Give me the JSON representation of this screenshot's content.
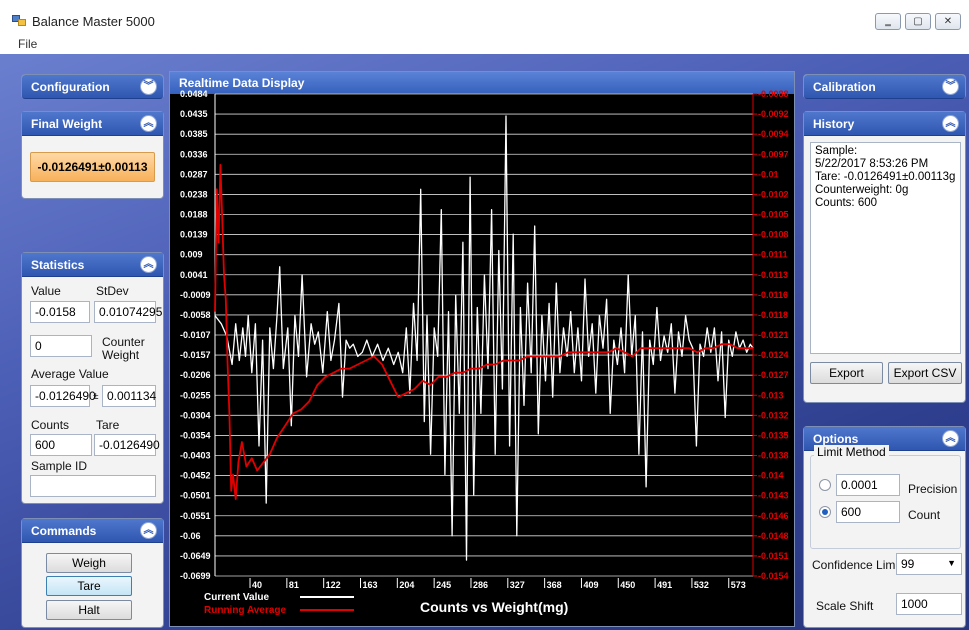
{
  "window": {
    "title": "Balance Master 5000",
    "min": "‗",
    "max": "▢",
    "close": "✕"
  },
  "menu": {
    "file": "File"
  },
  "configuration": {
    "title": "Configuration"
  },
  "final_weight": {
    "title": "Final Weight",
    "value": "-0.0126491±0.00113"
  },
  "statistics": {
    "title": "Statistics",
    "value_label": "Value",
    "stdev_label": "StDev",
    "value": "-0.0158",
    "stdev": "0.01074295",
    "counter_weight_value": "0",
    "counter_weight_label_1": "Counter",
    "counter_weight_label_2": "Weight",
    "average_label": "Average Value",
    "average": "-0.0126490",
    "pm": "±",
    "average_err": "0.001134",
    "counts_label": "Counts",
    "tare_label": "Tare",
    "counts": "600",
    "tare": "-0.0126490",
    "sample_id_label": "Sample ID",
    "sample_id": ""
  },
  "commands": {
    "title": "Commands",
    "weigh": "Weigh",
    "tare": "Tare",
    "halt": "Halt"
  },
  "realtime": {
    "title": "Realtime Data Display"
  },
  "calibration": {
    "title": "Calibration"
  },
  "history": {
    "title": "History",
    "lines": [
      "Sample:",
      "5/22/2017 8:53:26 PM",
      "Tare: -0.0126491±0.00113g",
      "Counterweight: 0g",
      "Counts: 600"
    ],
    "export": "Export",
    "export_csv": "Export CSV"
  },
  "options": {
    "title": "Options",
    "limit_method": "Limit Method",
    "precision_value": "0.0001",
    "precision_label": "Precision",
    "count_value": "600",
    "count_label": "Count",
    "selected": "count",
    "confidence_label": "Confidence Limit",
    "confidence_value": "99",
    "scale_shift_label": "Scale Shift",
    "scale_shift_value": "1000"
  },
  "colors": {
    "current": "#ffffff",
    "running": "#e00000",
    "grid": "#d9d9d9"
  },
  "chart_data": {
    "type": "line",
    "title": "Counts vs Weight(mg)",
    "x_ticks": [
      "40",
      "81",
      "122",
      "163",
      "204",
      "245",
      "286",
      "327",
      "368",
      "409",
      "450",
      "491",
      "532",
      "573"
    ],
    "y_left_ticks": [
      "0.0484",
      "0.0435",
      "0.0385",
      "0.0336",
      "0.0287",
      "0.0238",
      "0.0188",
      "0.0139",
      "0.009",
      "0.0041",
      "-0.0009",
      "-0.0058",
      "-0.0107",
      "-0.0157",
      "-0.0206",
      "-0.0255",
      "-0.0304",
      "-0.0354",
      "-0.0403",
      "-0.0452",
      "-0.0501",
      "-0.0551",
      "-0.06",
      "-0.0649",
      "-0.0699"
    ],
    "y_right_ticks": [
      "-0.0088",
      "-0.0092",
      "-0.0094",
      "-0.0097",
      "-0.01",
      "-0.0102",
      "-0.0105",
      "-0.0108",
      "-0.0111",
      "-0.0113",
      "-0.0116",
      "-0.0118",
      "-0.0121",
      "-0.0124",
      "-0.0127",
      "-0.013",
      "-0.0132",
      "-0.0135",
      "-0.0138",
      "-0.014",
      "-0.0143",
      "-0.0146",
      "-0.0148",
      "-0.0151",
      "-0.0154"
    ],
    "ylim_left": [
      -0.0699,
      0.0484
    ],
    "ylim_right": [
      -0.0154,
      -0.0088
    ],
    "xlim": [
      1,
      600
    ],
    "grid": true,
    "legend_position": "bottom-left",
    "series": [
      {
        "name": "Current Value",
        "axis": "left",
        "points": [
          [
            1,
            -0.006
          ],
          [
            8,
            -0.008
          ],
          [
            14,
            -0.011
          ],
          [
            20,
            -0.018
          ],
          [
            24,
            -0.008
          ],
          [
            28,
            -0.017
          ],
          [
            32,
            -0.009
          ],
          [
            35,
            -0.016
          ],
          [
            38,
            -0.006
          ],
          [
            42,
            -0.02
          ],
          [
            46,
            -0.008
          ],
          [
            50,
            -0.038
          ],
          [
            54,
            -0.012
          ],
          [
            58,
            -0.052
          ],
          [
            62,
            -0.009
          ],
          [
            66,
            -0.019
          ],
          [
            70,
            -0.006
          ],
          [
            73,
            0.006
          ],
          [
            77,
            -0.019
          ],
          [
            82,
            -0.009
          ],
          [
            86,
            -0.033
          ],
          [
            90,
            -0.006
          ],
          [
            94,
            -0.016
          ],
          [
            98,
            0.004
          ],
          [
            103,
            -0.021
          ],
          [
            108,
            -0.008
          ],
          [
            112,
            -0.013
          ],
          [
            116,
            -0.01
          ],
          [
            121,
            -0.02
          ],
          [
            126,
            -0.005
          ],
          [
            130,
            -0.017
          ],
          [
            134,
            -0.012
          ],
          [
            139,
            -0.003
          ],
          [
            143,
            -0.026
          ],
          [
            147,
            -0.012
          ],
          [
            151,
            -0.014
          ],
          [
            155,
            -0.013
          ],
          [
            160,
            -0.016
          ],
          [
            165,
            -0.015
          ],
          [
            170,
            -0.012
          ],
          [
            176,
            -0.016
          ],
          [
            182,
            -0.013
          ],
          [
            188,
            -0.017
          ],
          [
            194,
            -0.014
          ],
          [
            200,
            -0.018
          ],
          [
            205,
            -0.015
          ],
          [
            210,
            -0.02
          ],
          [
            214,
            -0.009
          ],
          [
            218,
            -0.025
          ],
          [
            222,
            -0.003
          ],
          [
            226,
            -0.017
          ],
          [
            230,
            0.025
          ],
          [
            234,
            -0.032
          ],
          [
            237,
            -0.006
          ],
          [
            241,
            -0.04
          ],
          [
            245,
            -0.009
          ],
          [
            249,
            -0.016
          ],
          [
            253,
            0.02
          ],
          [
            257,
            -0.045
          ],
          [
            261,
            -0.005
          ],
          [
            265,
            -0.06
          ],
          [
            269,
            -0.001
          ],
          [
            273,
            -0.03
          ],
          [
            277,
            0.012
          ],
          [
            281,
            -0.066
          ],
          [
            285,
            0.028
          ],
          [
            289,
            -0.05
          ],
          [
            293,
            -0.004
          ],
          [
            297,
            -0.03
          ],
          [
            301,
            0.004
          ],
          [
            305,
            -0.019
          ],
          [
            309,
            0.02
          ],
          [
            313,
            -0.04
          ],
          [
            317,
            0.01
          ],
          [
            321,
            -0.024
          ],
          [
            325,
            0.043
          ],
          [
            329,
            -0.038
          ],
          [
            333,
            0.014
          ],
          [
            337,
            -0.06
          ],
          [
            341,
            -0.004
          ],
          [
            345,
            -0.028
          ],
          [
            349,
            0.002
          ],
          [
            353,
            -0.02
          ],
          [
            357,
            0.016
          ],
          [
            361,
            -0.035
          ],
          [
            365,
            -0.006
          ],
          [
            369,
            -0.022
          ],
          [
            373,
            -0.003
          ],
          [
            377,
            -0.026
          ],
          [
            381,
            0.002
          ],
          [
            385,
            -0.02
          ],
          [
            389,
            -0.009
          ],
          [
            393,
            -0.016
          ],
          [
            397,
            -0.005
          ],
          [
            401,
            -0.02
          ],
          [
            405,
            -0.009
          ],
          [
            409,
            -0.022
          ],
          [
            413,
            0.003
          ],
          [
            417,
            -0.016
          ],
          [
            421,
            -0.008
          ],
          [
            425,
            -0.025
          ],
          [
            429,
            -0.006
          ],
          [
            433,
            -0.014
          ],
          [
            437,
            -0.002
          ],
          [
            441,
            -0.03
          ],
          [
            445,
            -0.012
          ],
          [
            449,
            -0.018
          ],
          [
            453,
            -0.009
          ],
          [
            457,
            -0.02
          ],
          [
            461,
            0.004
          ],
          [
            465,
            -0.016
          ],
          [
            469,
            -0.006
          ],
          [
            473,
            -0.04
          ],
          [
            477,
            -0.01
          ],
          [
            481,
            -0.048
          ],
          [
            485,
            -0.012
          ],
          [
            489,
            -0.018
          ],
          [
            493,
            -0.004
          ],
          [
            497,
            -0.017
          ],
          [
            501,
            -0.011
          ],
          [
            505,
            -0.015
          ],
          [
            509,
            -0.008
          ],
          [
            513,
            -0.025
          ],
          [
            517,
            -0.01
          ],
          [
            521,
            -0.016
          ],
          [
            525,
            -0.006
          ],
          [
            529,
            -0.012
          ],
          [
            533,
            -0.014
          ],
          [
            537,
            -0.038
          ],
          [
            541,
            -0.013
          ],
          [
            545,
            -0.016
          ],
          [
            549,
            -0.009
          ],
          [
            553,
            -0.015
          ],
          [
            557,
            -0.009
          ],
          [
            561,
            -0.022
          ],
          [
            565,
            -0.01
          ],
          [
            569,
            -0.031
          ],
          [
            573,
            -0.012
          ],
          [
            577,
            -0.016
          ],
          [
            581,
            -0.01
          ],
          [
            585,
            -0.014
          ],
          [
            589,
            -0.012
          ],
          [
            593,
            -0.015
          ],
          [
            597,
            -0.013
          ],
          [
            600,
            -0.014
          ]
        ]
      },
      {
        "name": "Running Average",
        "axis": "left",
        "points": [
          [
            1,
            -0.005
          ],
          [
            3,
            0.025
          ],
          [
            5,
            0.012
          ],
          [
            7,
            0.031
          ],
          [
            9,
            0.018
          ],
          [
            11,
            0.004
          ],
          [
            13,
            -0.002
          ],
          [
            15,
            -0.018
          ],
          [
            17,
            -0.03
          ],
          [
            19,
            -0.049
          ],
          [
            21,
            -0.045
          ],
          [
            24,
            -0.051
          ],
          [
            27,
            -0.042
          ],
          [
            31,
            -0.037
          ],
          [
            36,
            -0.043
          ],
          [
            42,
            -0.041
          ],
          [
            48,
            -0.044
          ],
          [
            55,
            -0.042
          ],
          [
            62,
            -0.04
          ],
          [
            70,
            -0.036
          ],
          [
            79,
            -0.033
          ],
          [
            88,
            -0.03
          ],
          [
            97,
            -0.029
          ],
          [
            106,
            -0.027
          ],
          [
            115,
            -0.023
          ],
          [
            124,
            -0.021
          ],
          [
            133,
            -0.02
          ],
          [
            142,
            -0.019
          ],
          [
            151,
            -0.019
          ],
          [
            160,
            -0.018
          ],
          [
            169,
            -0.017
          ],
          [
            178,
            -0.016
          ],
          [
            187,
            -0.018
          ],
          [
            196,
            -0.022
          ],
          [
            205,
            -0.026
          ],
          [
            214,
            -0.025
          ],
          [
            223,
            -0.024
          ],
          [
            232,
            -0.022
          ],
          [
            241,
            -0.023
          ],
          [
            250,
            -0.021
          ],
          [
            259,
            -0.021
          ],
          [
            268,
            -0.02
          ],
          [
            277,
            -0.02
          ],
          [
            286,
            -0.019
          ],
          [
            295,
            -0.019
          ],
          [
            304,
            -0.018
          ],
          [
            313,
            -0.018
          ],
          [
            322,
            -0.017
          ],
          [
            331,
            -0.017
          ],
          [
            340,
            -0.017
          ],
          [
            349,
            -0.016
          ],
          [
            358,
            -0.016
          ],
          [
            367,
            -0.016
          ],
          [
            376,
            -0.016
          ],
          [
            385,
            -0.016
          ],
          [
            394,
            -0.015
          ],
          [
            403,
            -0.015
          ],
          [
            412,
            -0.015
          ],
          [
            421,
            -0.015
          ],
          [
            430,
            -0.015
          ],
          [
            439,
            -0.015
          ],
          [
            448,
            -0.014
          ],
          [
            457,
            -0.015
          ],
          [
            466,
            -0.016
          ],
          [
            475,
            -0.014
          ],
          [
            484,
            -0.014
          ],
          [
            493,
            -0.014
          ],
          [
            502,
            -0.014
          ],
          [
            511,
            -0.014
          ],
          [
            520,
            -0.014
          ],
          [
            529,
            -0.014
          ],
          [
            538,
            -0.015
          ],
          [
            547,
            -0.014
          ],
          [
            556,
            -0.014
          ],
          [
            565,
            -0.013
          ],
          [
            574,
            -0.013
          ],
          [
            583,
            -0.014
          ],
          [
            592,
            -0.014
          ],
          [
            600,
            -0.014
          ]
        ]
      }
    ]
  }
}
